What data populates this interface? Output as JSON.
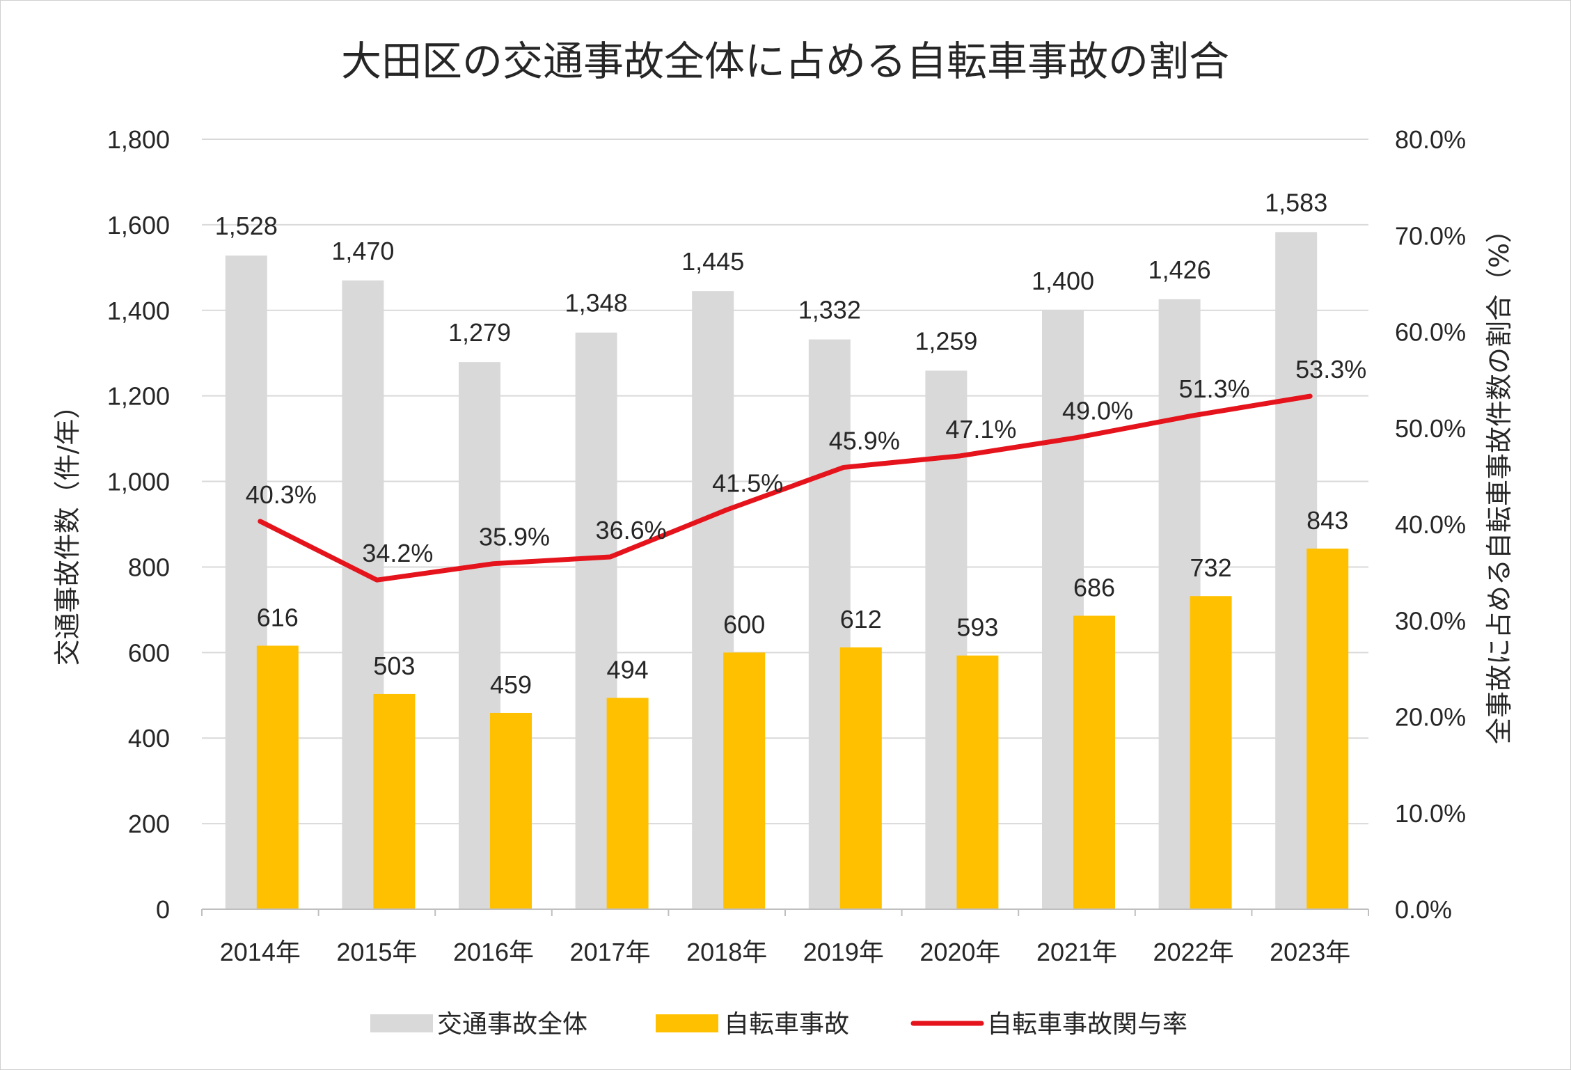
{
  "chart_data": {
    "type": "bar",
    "title": "大田区の交通事故全体に占める自転車事故の割合",
    "categories": [
      "2014年",
      "2015年",
      "2016年",
      "2017年",
      "2018年",
      "2019年",
      "2020年",
      "2021年",
      "2022年",
      "2023年"
    ],
    "series": [
      {
        "name": "交通事故全体",
        "type": "bar",
        "axis": "left",
        "color": "#d9d9d9",
        "values": [
          1528,
          1470,
          1279,
          1348,
          1445,
          1332,
          1259,
          1400,
          1426,
          1583
        ],
        "labels": [
          "1,528",
          "1,470",
          "1,279",
          "1,348",
          "1,445",
          "1,332",
          "1,259",
          "1,400",
          "1,426",
          "1,583"
        ]
      },
      {
        "name": "自転車事故",
        "type": "bar",
        "axis": "left",
        "color": "#ffc000",
        "values": [
          616,
          503,
          459,
          494,
          600,
          612,
          593,
          686,
          732,
          843
        ],
        "labels": [
          "616",
          "503",
          "459",
          "494",
          "600",
          "612",
          "593",
          "686",
          "732",
          "843"
        ]
      },
      {
        "name": "自転車事故関与率",
        "type": "line",
        "axis": "right",
        "color": "#e5131b",
        "values": [
          40.3,
          34.2,
          35.9,
          36.6,
          41.5,
          45.9,
          47.1,
          49.0,
          51.3,
          53.3
        ],
        "labels": [
          "40.3%",
          "34.2%",
          "35.9%",
          "36.6%",
          "41.5%",
          "45.9%",
          "47.1%",
          "49.0%",
          "51.3%",
          "53.3%"
        ]
      }
    ],
    "ylabel": "交通事故件数（件/年）",
    "ylabel_right": "全事故に占める自転車事故件数の割合（%）",
    "ylim": [
      0,
      1800
    ],
    "ylim_right": [
      0,
      80
    ],
    "yticks": [
      0,
      200,
      400,
      600,
      800,
      1000,
      1200,
      1400,
      1600,
      1800
    ],
    "ytick_labels": [
      "0",
      "200",
      "400",
      "600",
      "800",
      "1,000",
      "1,200",
      "1,400",
      "1,600",
      "1,800"
    ],
    "yticks_right": [
      0,
      10,
      20,
      30,
      40,
      50,
      60,
      70,
      80
    ],
    "ytick_labels_right": [
      "0.0%",
      "10.0%",
      "20.0%",
      "30.0%",
      "40.0%",
      "50.0%",
      "60.0%",
      "70.0%",
      "80.0%"
    ],
    "grid": true,
    "legend_position": "bottom"
  }
}
